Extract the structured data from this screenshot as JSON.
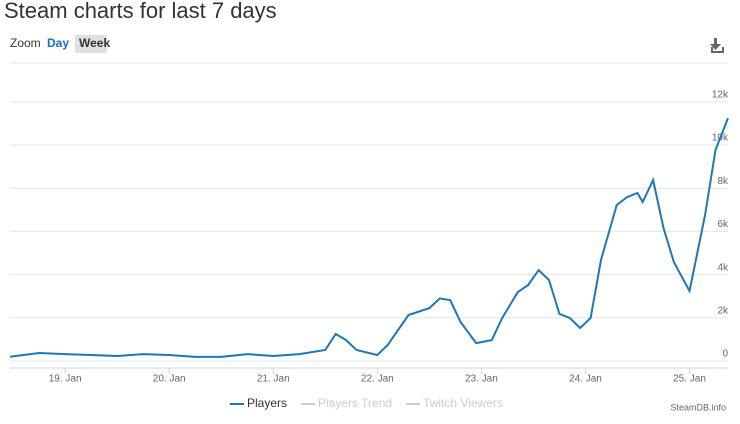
{
  "chart_data": {
    "type": "line",
    "title": "Steam charts for last 7 days",
    "zoom_label": "Zoom",
    "zoom_options": [
      "Day",
      "Week"
    ],
    "credit": "SteamDB.info",
    "x": [
      18.47,
      18.75,
      19.0,
      19.25,
      19.5,
      19.75,
      20.0,
      20.25,
      20.5,
      20.75,
      21.0,
      21.25,
      21.5,
      21.6,
      21.7,
      21.8,
      22.0,
      22.1,
      22.3,
      22.5,
      22.6,
      22.7,
      22.8,
      22.95,
      23.1,
      23.2,
      23.35,
      23.45,
      23.55,
      23.65,
      23.75,
      23.85,
      23.95,
      24.05,
      24.15,
      24.3,
      24.4,
      24.5,
      24.55,
      24.65,
      24.75,
      24.85,
      25.0,
      25.15,
      25.25,
      25.37
    ],
    "series": [
      {
        "name": "Players",
        "color": "#1f77b4",
        "visible": true,
        "values": [
          200,
          370,
          320,
          280,
          230,
          320,
          280,
          190,
          190,
          320,
          230,
          320,
          510,
          1250,
          970,
          510,
          280,
          740,
          2130,
          2450,
          2900,
          2820,
          1800,
          830,
          970,
          1990,
          3190,
          3520,
          4210,
          3750,
          2180,
          1990,
          1530,
          1990,
          4680,
          7220,
          7590,
          7780,
          7360,
          8380,
          6160,
          4580,
          3240,
          6760,
          9770,
          11250
        ]
      },
      {
        "name": "Players Trend",
        "color": "#cccccc",
        "visible": false
      },
      {
        "name": "Twitch Viewers",
        "color": "#cccccc",
        "visible": false
      }
    ],
    "xlim": [
      18.47,
      25.37
    ],
    "xticks": [
      {
        "value": 19,
        "label": "19. Jan"
      },
      {
        "value": 20,
        "label": "20. Jan"
      },
      {
        "value": 21,
        "label": "21. Jan"
      },
      {
        "value": 22,
        "label": "22. Jan"
      },
      {
        "value": 23,
        "label": "23. Jan"
      },
      {
        "value": 24,
        "label": "24. Jan"
      },
      {
        "value": 25,
        "label": "25. Jan"
      }
    ],
    "ylim": [
      0,
      13800
    ],
    "yticks": [
      0,
      {
        "value": 2000,
        "label": "2k"
      },
      {
        "value": 4000,
        "label": "4k"
      },
      {
        "value": 6000,
        "label": "6k"
      },
      {
        "value": 8000,
        "label": "8k"
      },
      {
        "value": 10000,
        "label": "10k"
      },
      {
        "value": 12000,
        "label": "12k"
      }
    ],
    "grid": true
  }
}
